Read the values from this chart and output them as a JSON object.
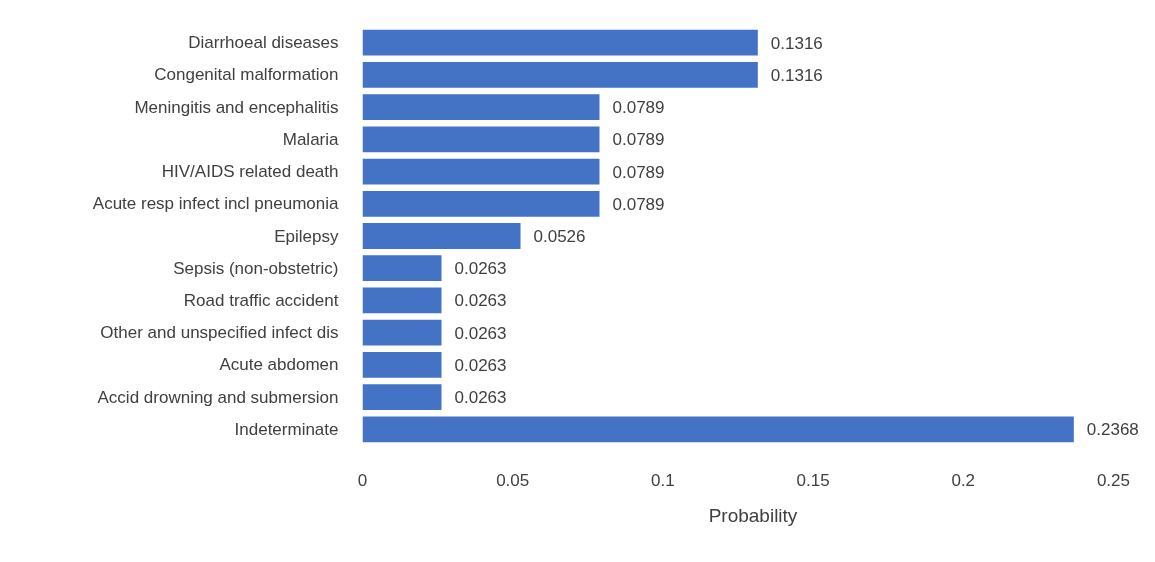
{
  "chart_data": {
    "type": "bar",
    "orientation": "horizontal",
    "xlabel": "Probability",
    "categories": [
      "Diarrhoeal diseases",
      "Congenital malformation",
      "Meningitis and encephalitis",
      "Malaria",
      "HIV/AIDS related death",
      "Acute resp infect incl pneumonia",
      "Epilepsy",
      "Sepsis (non-obstetric)",
      "Road traffic accident",
      "Other and unspecified infect dis",
      "Acute abdomen",
      "Accid drowning and submersion",
      "Indeterminate"
    ],
    "values": [
      0.1316,
      0.1316,
      0.0789,
      0.0789,
      0.0789,
      0.0789,
      0.0526,
      0.0263,
      0.0263,
      0.0263,
      0.0263,
      0.0263,
      0.2368
    ],
    "color": "#4472c4",
    "xlim": [
      0,
      0.25
    ],
    "xticks": [
      0,
      0.05,
      0.1,
      0.15,
      0.2,
      0.25
    ],
    "data_labels": true,
    "grid": false
  }
}
